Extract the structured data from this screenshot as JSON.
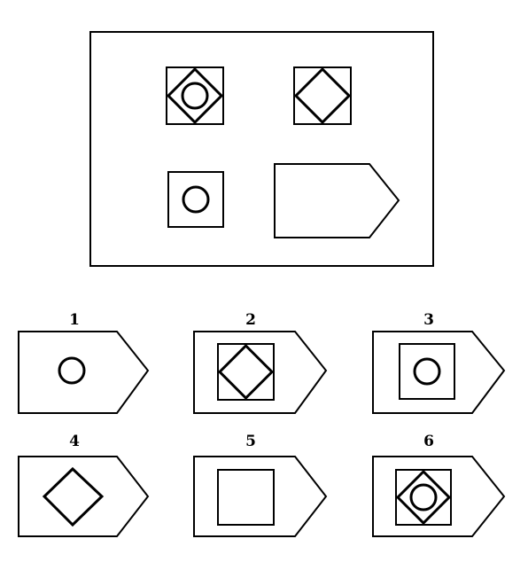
{
  "puzzle": {
    "matrix": {
      "cells": [
        {
          "id": "r1c1",
          "content": [
            "square",
            "diamond",
            "circle"
          ]
        },
        {
          "id": "r1c2",
          "content": [
            "square",
            "diamond"
          ]
        },
        {
          "id": "r2c1",
          "content": [
            "square",
            "circle"
          ]
        },
        {
          "id": "r2c2",
          "content": [
            "pentagon"
          ]
        }
      ]
    },
    "options": [
      {
        "label": "1",
        "content": [
          "pentagon",
          "circle"
        ]
      },
      {
        "label": "2",
        "content": [
          "pentagon",
          "square",
          "diamond"
        ]
      },
      {
        "label": "3",
        "content": [
          "pentagon",
          "square",
          "circle"
        ]
      },
      {
        "label": "4",
        "content": [
          "pentagon",
          "diamond"
        ]
      },
      {
        "label": "5",
        "content": [
          "pentagon",
          "square"
        ]
      },
      {
        "label": "6",
        "content": [
          "pentagon",
          "square",
          "diamond",
          "circle"
        ]
      }
    ]
  },
  "colors": {
    "stroke": "#000000",
    "background": "#ffffff"
  }
}
